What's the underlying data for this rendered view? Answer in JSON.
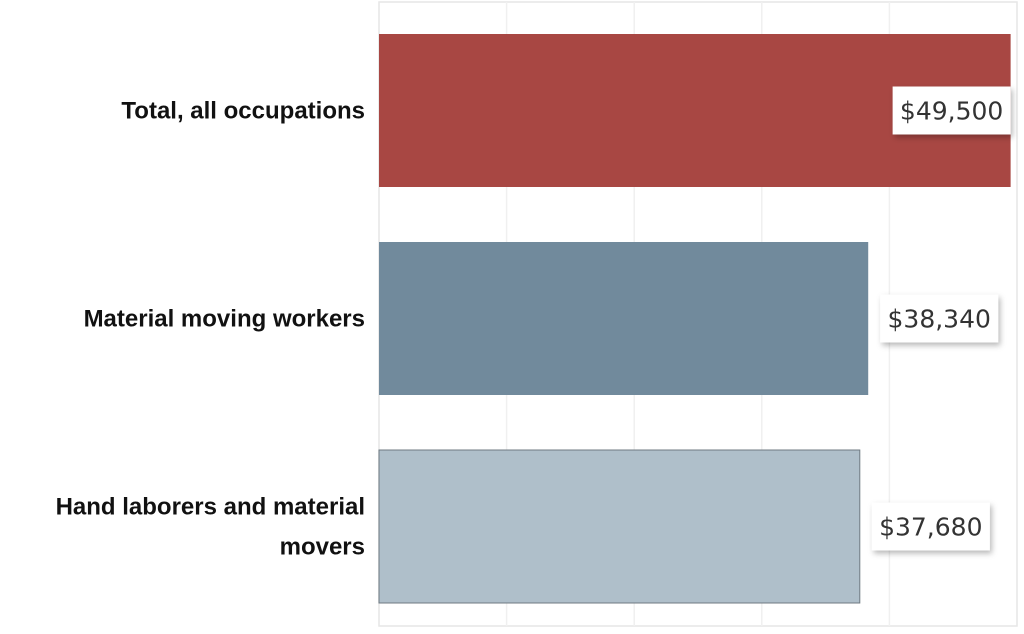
{
  "chart_data": {
    "type": "bar",
    "orientation": "horizontal",
    "title": "",
    "xlabel": "",
    "ylabel": "",
    "categories": [
      [
        "Total, all occupations"
      ],
      [
        "Material moving workers"
      ],
      [
        "Hand laborers and material",
        "movers"
      ]
    ],
    "values": [
      49500,
      38340,
      37680
    ],
    "value_labels": [
      "$49,500",
      "$38,340",
      "$37,680"
    ],
    "colors": [
      "#a84743",
      "#718a9c",
      "#afbfca"
    ],
    "xlim": [
      0,
      50000
    ],
    "grid": true,
    "legend": "none"
  }
}
